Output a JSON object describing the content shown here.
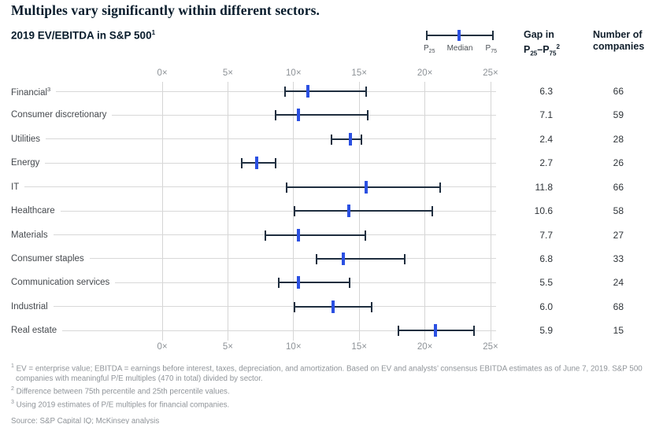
{
  "title": "Multiples vary significantly within different sectors.",
  "subtitle": {
    "text": "2019 EV/EBITDA in S&P 500",
    "sup": "1"
  },
  "legend": {
    "p_label": "P",
    "p25_sub": "25",
    "median_label": "Median",
    "p75_sub": "75"
  },
  "column_headers": {
    "gap_line1": "Gap in",
    "gap_p1": "P",
    "gap_p25_sub": "25",
    "gap_dash": "–",
    "gap_p2": "P",
    "gap_p75_sub": "75",
    "gap_sup": "2",
    "companies_line1": "Number of",
    "companies_line2": "companies"
  },
  "chart_data": {
    "type": "range-bar",
    "orientation": "horizontal",
    "title": "2019 EV/EBITDA in S&P 500",
    "unit_suffix": "×",
    "legend_position": "top-right",
    "legend_entries": [
      "P25",
      "Median",
      "P75"
    ],
    "x_axis": {
      "min": 0,
      "max": 25,
      "ticks": [
        "0×",
        "5×",
        "10×",
        "15×",
        "20×",
        "25×"
      ],
      "tick_values": [
        0,
        5,
        10,
        15,
        20,
        25
      ],
      "grid": true
    },
    "value_columns": [
      "Gap in P25–P75",
      "Number of companies"
    ],
    "series": [
      {
        "label": "Financial",
        "sup": "3",
        "p25": 9.3,
        "median": 11.1,
        "p75": 15.6,
        "gap": "6.3",
        "companies": "66"
      },
      {
        "label": "Consumer discretionary",
        "sup": "",
        "p25": 8.6,
        "median": 10.4,
        "p75": 15.7,
        "gap": "7.1",
        "companies": "59"
      },
      {
        "label": "Utilities",
        "sup": "",
        "p25": 12.8,
        "median": 14.3,
        "p75": 15.2,
        "gap": "2.4",
        "companies": "28"
      },
      {
        "label": "Energy",
        "sup": "",
        "p25": 6.0,
        "median": 7.2,
        "p75": 8.7,
        "gap": "2.7",
        "companies": "26"
      },
      {
        "label": "IT",
        "sup": "",
        "p25": 9.4,
        "median": 15.5,
        "p75": 21.2,
        "gap": "11.8",
        "companies": "66"
      },
      {
        "label": "Healthcare",
        "sup": "",
        "p25": 10.0,
        "median": 14.2,
        "p75": 20.6,
        "gap": "10.6",
        "companies": "58"
      },
      {
        "label": "Materials",
        "sup": "",
        "p25": 7.8,
        "median": 10.4,
        "p75": 15.5,
        "gap": "7.7",
        "companies": "27"
      },
      {
        "label": "Consumer staples",
        "sup": "",
        "p25": 11.7,
        "median": 13.8,
        "p75": 18.5,
        "gap": "6.8",
        "companies": "33"
      },
      {
        "label": "Communication services",
        "sup": "",
        "p25": 8.8,
        "median": 10.4,
        "p75": 14.3,
        "gap": "5.5",
        "companies": "24"
      },
      {
        "label": "Industrial",
        "sup": "",
        "p25": 10.0,
        "median": 13.0,
        "p75": 16.0,
        "gap": "6.0",
        "companies": "68"
      },
      {
        "label": "Real estate",
        "sup": "",
        "p25": 17.9,
        "median": 20.8,
        "p75": 23.8,
        "gap": "5.9",
        "companies": "15"
      }
    ]
  },
  "colors": {
    "bar": "#1f2e3f",
    "median_tick": "#2b50e2",
    "gridline": "#d5d5d5",
    "axis_text": "#8d9297",
    "heading_text": "#081c2c",
    "footnote_text": "#8f9499"
  },
  "footnotes": [
    {
      "sup": "1",
      "text": "EV = enterprise value; EBITDA = earnings before interest, taxes, depreciation, and amortization. Based on EV and analysts’ consensus EBITDA estimates as of June 7, 2019. S&P 500 companies with meaningful P/E multiples (470 in total) divided by sector."
    },
    {
      "sup": "2",
      "text": "Difference between 75th percentile and 25th percentile values."
    },
    {
      "sup": "3",
      "text": "Using 2019 estimates of P/E multiples for financial companies."
    }
  ],
  "source": "Source: S&P Capital IQ; McKinsey analysis"
}
